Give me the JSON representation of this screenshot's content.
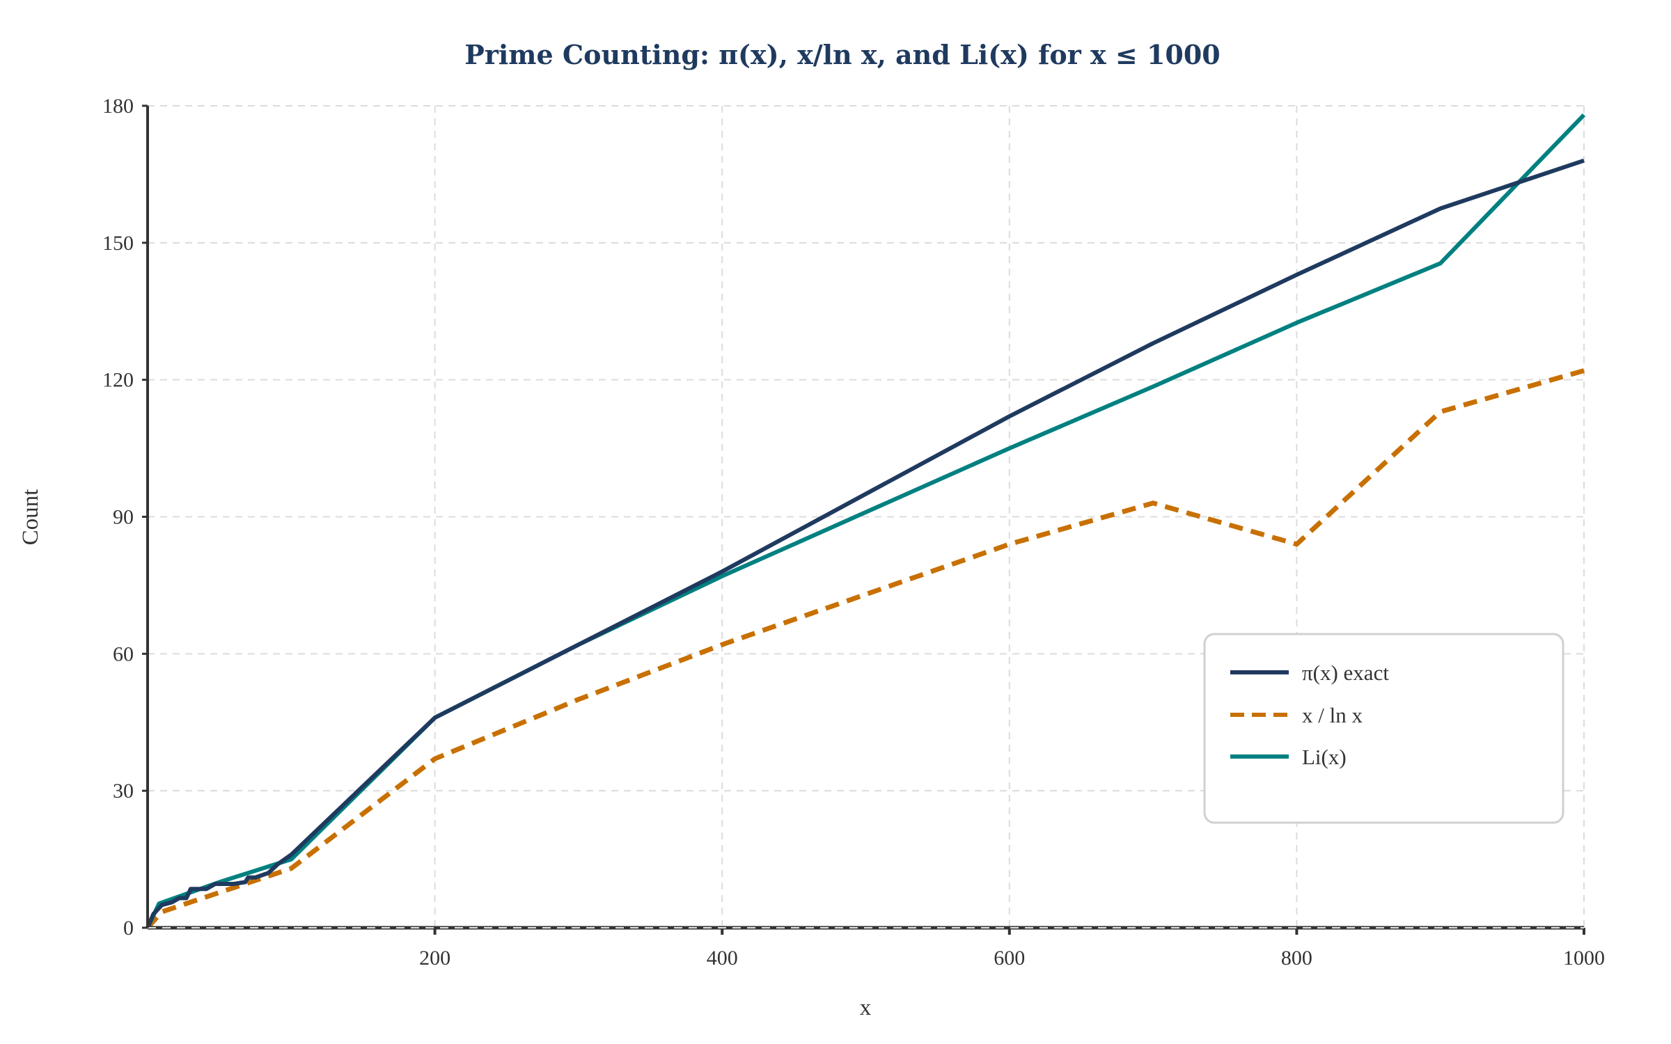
{
  "chart_data": {
    "type": "line",
    "title": "Prime Counting: π(x), x/ln x, and Li(x) for x ≤ 1000",
    "xlabel": "x",
    "ylabel": "Count",
    "xlim": [
      0,
      1000
    ],
    "ylim": [
      0,
      180
    ],
    "xticks": [
      200,
      400,
      600,
      800,
      1000
    ],
    "yticks": [
      0,
      30,
      60,
      90,
      120,
      150,
      180
    ],
    "grid": true,
    "legend_position": "right",
    "series": [
      {
        "name": "π(x) exact",
        "color": "#1f3a5f",
        "style": "solid",
        "x": [
          0,
          4,
          10,
          17,
          22,
          27,
          30,
          41,
          47,
          60,
          68,
          70,
          75,
          84,
          91,
          100,
          200,
          300,
          400,
          500,
          600,
          700,
          800,
          900,
          1000
        ],
        "y": [
          0,
          3,
          5,
          5.6,
          6.5,
          6.5,
          8.5,
          8.5,
          9.6,
          9.6,
          10,
          11,
          11,
          12,
          14,
          16,
          46,
          62,
          78,
          95,
          112,
          128,
          143,
          157.5,
          168
        ]
      },
      {
        "name": "x / ln x",
        "color": "#c87000",
        "style": "dashed",
        "x": [
          0,
          10,
          100,
          200,
          300,
          400,
          500,
          600,
          700,
          800,
          900,
          1000
        ],
        "y": [
          0,
          3.5,
          13,
          37,
          50,
          62,
          73,
          84,
          93,
          84,
          113,
          122
        ]
      },
      {
        "name": "Li(x)",
        "color": "#008080",
        "style": "solid",
        "x": [
          0,
          8,
          50,
          100,
          200,
          300,
          400,
          500,
          600,
          700,
          800,
          900,
          1000
        ],
        "y": [
          0,
          5.3,
          10,
          15,
          46,
          62,
          77,
          91,
          105,
          118.5,
          132.5,
          145.5,
          178
        ]
      }
    ]
  }
}
